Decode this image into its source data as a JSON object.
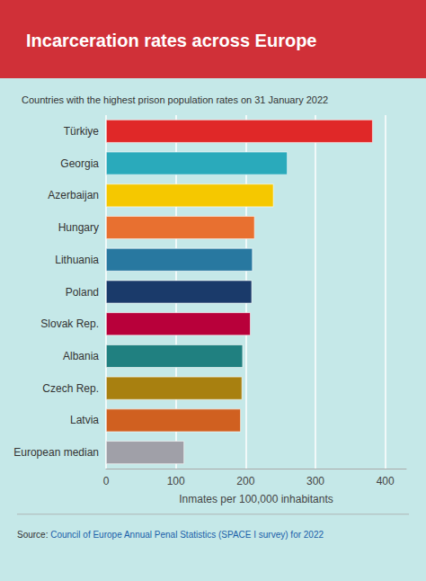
{
  "chart_data": {
    "type": "bar",
    "orientation": "horizontal",
    "title": "Incarceration rates across Europe",
    "subtitle": "Countries with the highest prison population rates on 31 January 2022",
    "xlabel": "Inmates per 100,000 inhabitants",
    "annotations": [
      "Source:",
      "Council of Europe Annual Penal Statistics (SPACE I survey) for 2022"
    ],
    "categories": [
      "Türkiye",
      "Georgia",
      "Azerbaijan",
      "Hungary",
      "Lithuania",
      "Poland",
      "Slovak Rep.",
      "Albania",
      "Czech Rep.",
      "Latvia",
      "European median"
    ],
    "values": [
      382,
      260,
      240,
      213,
      210,
      209,
      207,
      196,
      195,
      193,
      112
    ],
    "colors": [
      "#e02828",
      "#2aaabb",
      "#f5c800",
      "#e87030",
      "#2878a0",
      "#1a3a6a",
      "#b8003a",
      "#208080",
      "#a88010",
      "#d06020",
      "#a0a0a8"
    ],
    "xlim": [
      0,
      430
    ],
    "xticks": [
      0,
      100,
      200,
      300,
      400
    ],
    "grid": true
  }
}
